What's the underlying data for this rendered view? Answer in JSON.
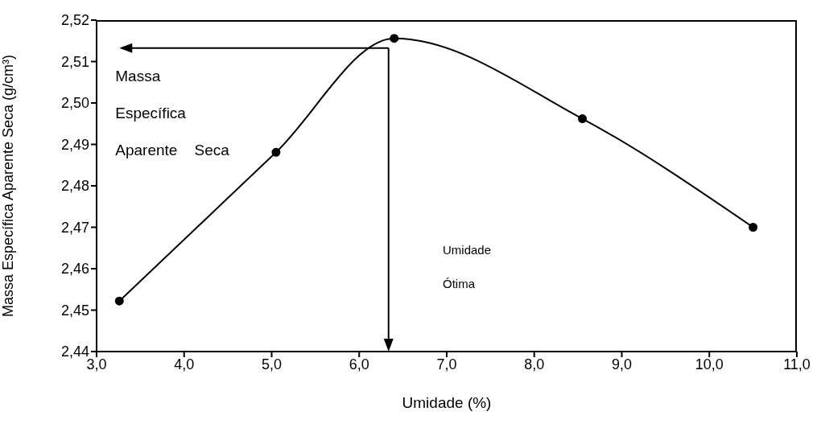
{
  "chart_data": {
    "type": "line",
    "xlabel": "Umidade (%)",
    "ylabel": "Massa Específica Aparente Seca (g/cm³)",
    "x": [
      3.26,
      5.05,
      6.4,
      8.55,
      10.5
    ],
    "series": [
      {
        "color": "#000000",
        "values": [
          2.4522,
          2.4881,
          2.5156,
          2.4962,
          2.47
        ]
      }
    ],
    "xlim": [
      3,
      11
    ],
    "xticks": [
      {
        "value": 3,
        "label": "3,0"
      },
      {
        "value": 4,
        "label": "4,0"
      },
      {
        "value": 5,
        "label": "5,0"
      },
      {
        "value": 6,
        "label": "6,0"
      },
      {
        "value": 7,
        "label": "7,0"
      },
      {
        "value": 8,
        "label": "8,0"
      },
      {
        "value": 9,
        "label": "9,0"
      },
      {
        "value": 10,
        "label": "10,0"
      },
      {
        "value": 11,
        "label": "11,0"
      }
    ],
    "ylim": [
      2.44,
      2.52
    ],
    "yticks": [
      {
        "value": 2.44,
        "label": "2,44"
      },
      {
        "value": 2.45,
        "label": "2,45"
      },
      {
        "value": 2.46,
        "label": "2,46"
      },
      {
        "value": 2.47,
        "label": "2,47"
      },
      {
        "value": 2.48,
        "label": "2,48"
      },
      {
        "value": 2.49,
        "label": "2,49"
      },
      {
        "value": 2.5,
        "label": "2,50"
      },
      {
        "value": 2.51,
        "label": "2,51"
      },
      {
        "value": 2.52,
        "label": "2,52"
      }
    ],
    "grid": false,
    "legend": false,
    "marker": "circle",
    "line_style": "solid",
    "annotations": [
      "Massa\nEspecífica\nAparente    Seca",
      "Umidade\nÓtima"
    ]
  }
}
